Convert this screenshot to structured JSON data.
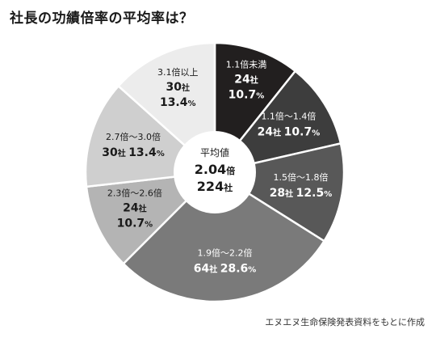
{
  "title": "社長の功績倍率の平均率は？",
  "source": "エヌエヌ生命保険発表資料をもとに作成",
  "center": {
    "line1": "平均値",
    "line2_value": "2.04",
    "line2_unit": "倍",
    "line3_value": "224",
    "line3_unit": "社"
  },
  "chart_data": {
    "type": "pie",
    "title": "社長の功績倍率の平均率は？",
    "unit_count": "社",
    "total": 224,
    "average": "2.04倍",
    "slices": [
      {
        "label": "1.1倍未満",
        "count": 24,
        "percent": 10.7,
        "color": "#221f1f",
        "text_color": "#ffffff"
      },
      {
        "label": "1.1倍～1.4倍",
        "count": 24,
        "percent": 10.7,
        "color": "#3d3d3d",
        "text_color": "#ffffff"
      },
      {
        "label": "1.5倍～1.8倍",
        "count": 28,
        "percent": 12.5,
        "color": "#585858",
        "text_color": "#ffffff"
      },
      {
        "label": "1.9倍～2.2倍",
        "count": 64,
        "percent": 28.6,
        "color": "#7a7a7a",
        "text_color": "#ffffff"
      },
      {
        "label": "2.3倍～2.6倍",
        "count": 24,
        "percent": 10.7,
        "color": "#b4b4b4",
        "text_color": "#1a1a1a"
      },
      {
        "label": "2.7倍～3.0倍",
        "count": 30,
        "percent": 13.4,
        "color": "#cfcfcf",
        "text_color": "#1a1a1a"
      },
      {
        "label": "3.1倍以上",
        "count": 30,
        "percent": 13.4,
        "color": "#ececec",
        "text_color": "#1a1a1a"
      }
    ]
  }
}
